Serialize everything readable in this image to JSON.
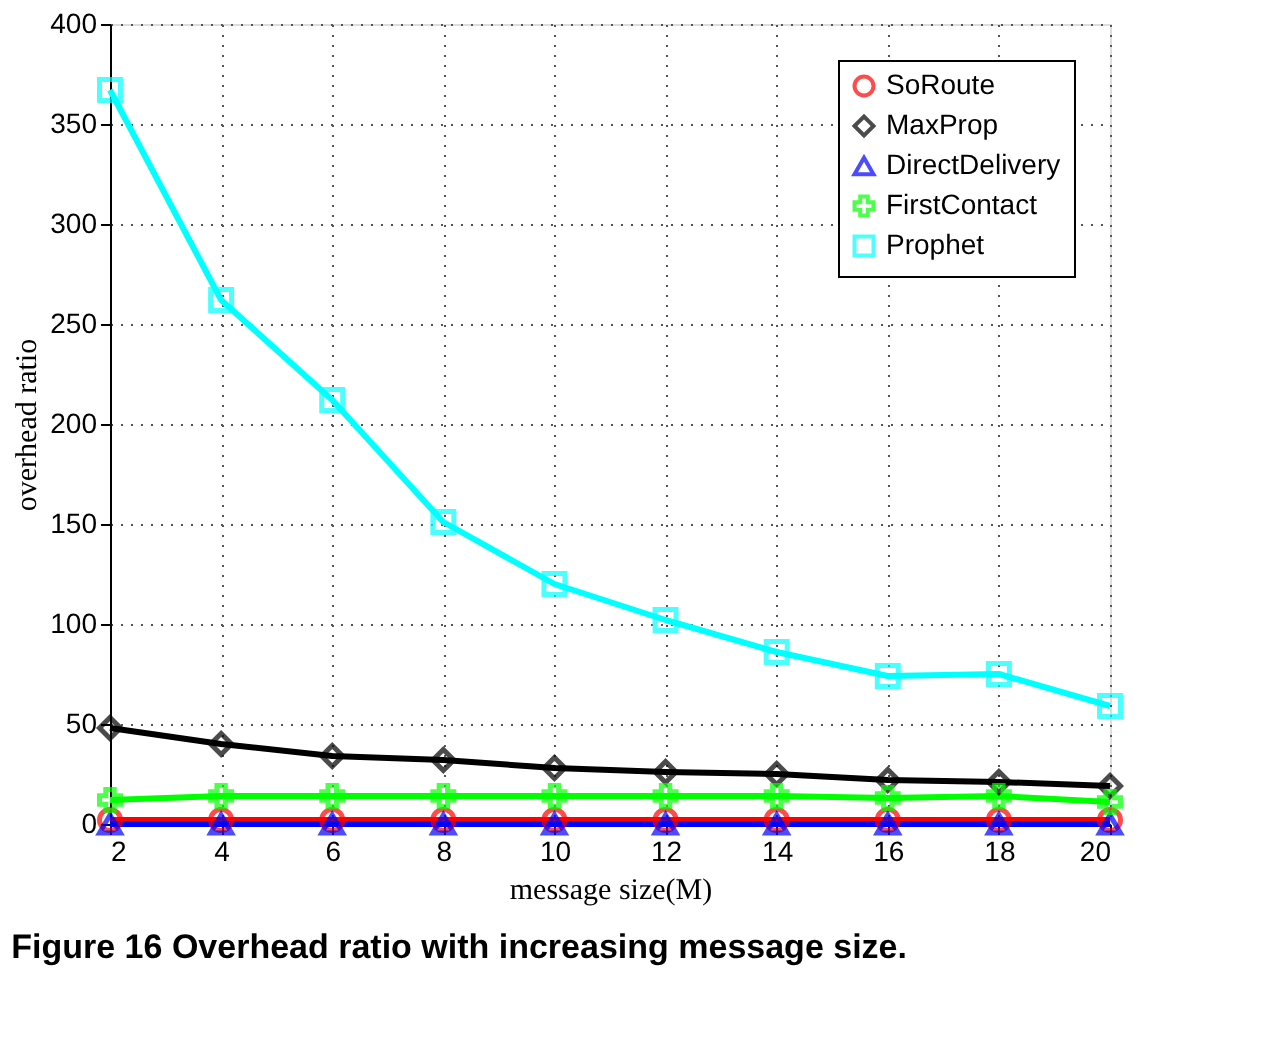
{
  "chart_data": {
    "type": "line",
    "title": "Figure 16 Overhead ratio with increasing message size.",
    "xlabel": "message size(M)",
    "ylabel": "overhead ratio",
    "x": [
      2,
      4,
      6,
      8,
      10,
      12,
      14,
      16,
      18,
      20
    ],
    "series": [
      {
        "name": "SoRoute",
        "color": "#ff0000",
        "marker": "circle",
        "values": [
          2,
          2,
          2,
          2,
          2,
          2,
          2,
          2,
          2,
          2
        ]
      },
      {
        "name": "MaxProp",
        "color": "#000000",
        "marker": "diamond",
        "values": [
          48,
          40,
          34,
          32,
          28,
          26,
          25,
          22,
          21,
          19
        ]
      },
      {
        "name": "DirectDelivery",
        "color": "#0000ff",
        "marker": "triangle",
        "values": [
          0,
          0,
          0,
          0,
          0,
          0,
          0,
          0,
          0,
          0
        ]
      },
      {
        "name": "FirstContact",
        "color": "#00ff00",
        "marker": "cross",
        "values": [
          12,
          14,
          14,
          14,
          14,
          14,
          14,
          13,
          14,
          11
        ]
      },
      {
        "name": "Prophet",
        "color": "#00ffff",
        "marker": "square",
        "values": [
          367,
          262,
          212,
          151,
          120,
          102,
          86,
          74,
          75,
          59
        ]
      }
    ],
    "xlim": [
      2,
      20
    ],
    "xticks": [
      2,
      4,
      6,
      8,
      10,
      12,
      14,
      16,
      18,
      20
    ],
    "ylim": [
      0,
      400
    ],
    "yticks": [
      0,
      50,
      100,
      150,
      200,
      250,
      300,
      350,
      400
    ],
    "grid": true,
    "legend": "top right",
    "line_style": "solid"
  }
}
